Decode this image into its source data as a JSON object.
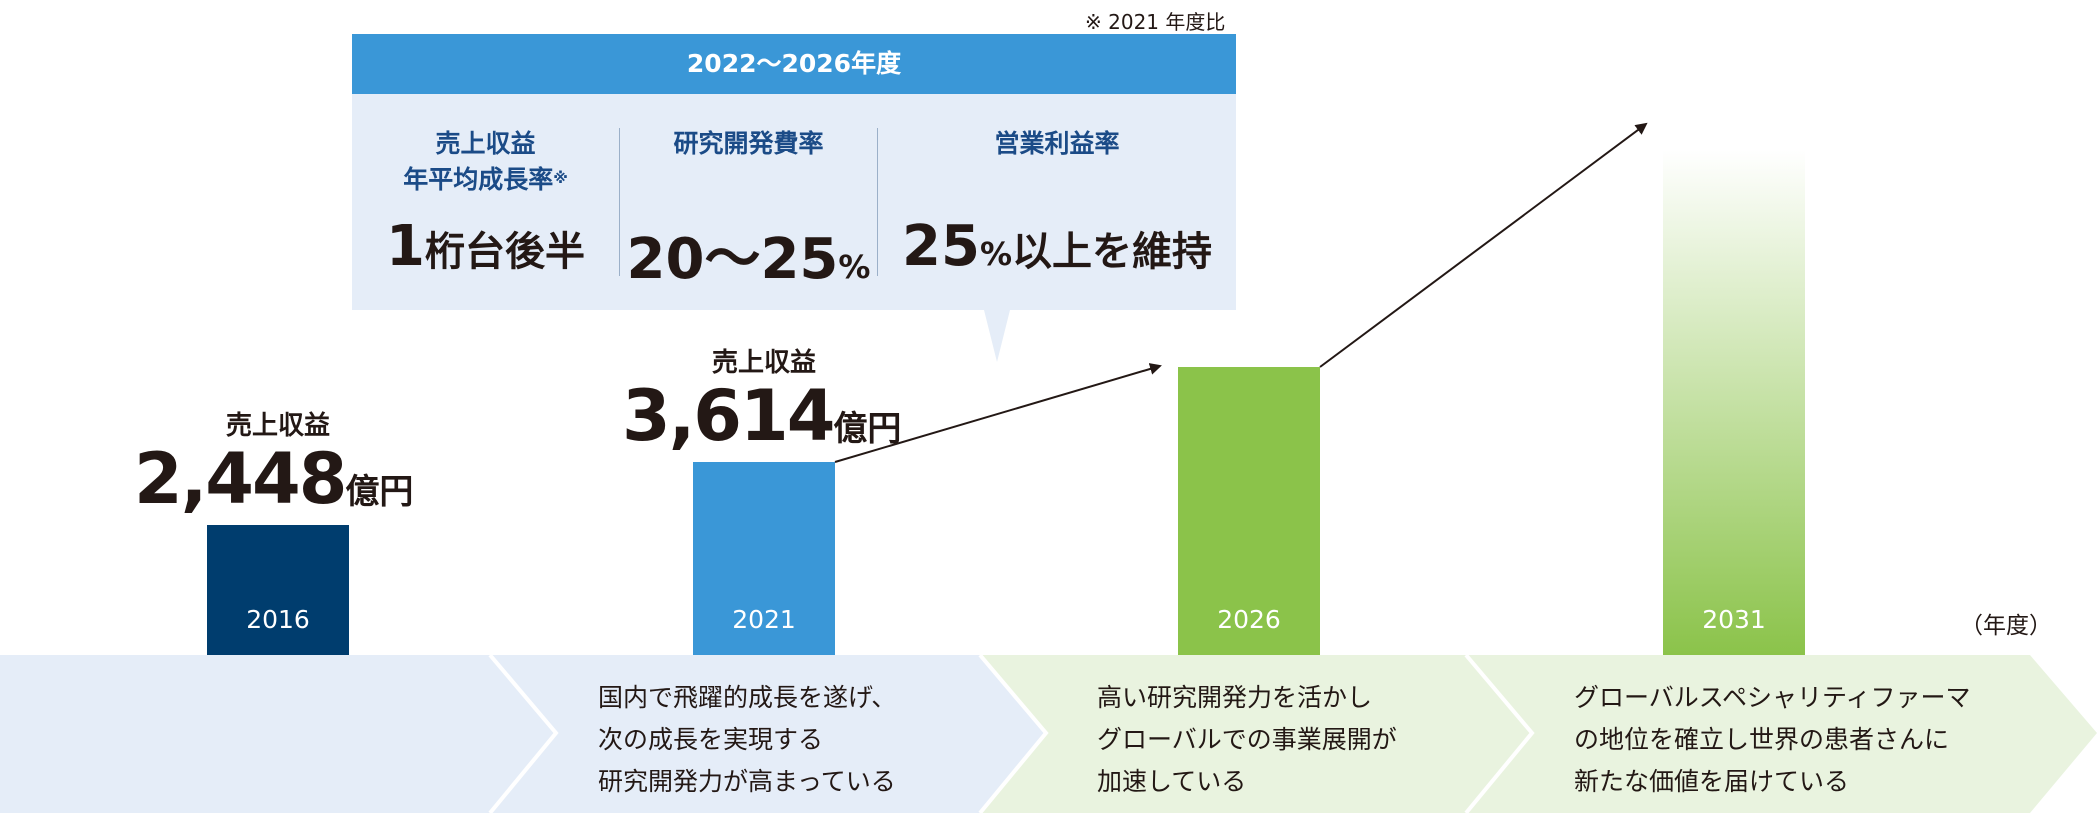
{
  "chart_data": {
    "type": "bar",
    "categories": [
      "2016",
      "2021",
      "2026",
      "2031"
    ],
    "values": [
      2448,
      3614,
      null,
      null
    ],
    "unit": "億円",
    "xunit": "（年度）",
    "colors": [
      "#003d6e",
      "#3a97d7",
      "#8bc34a",
      "#8bc34a"
    ],
    "annotations": {
      "sales_label": "売上収益",
      "bar_2016": "2,448",
      "bar_2021": "3,614",
      "unit": "億円"
    }
  },
  "target": {
    "note": "※ 2021 年度比",
    "period": "2022～2026年度",
    "metrics": [
      {
        "label_line1": "売上収益",
        "label_line2": "年平均成長率",
        "label_mark": "※",
        "value_main": "1",
        "value_rest": "桁台後半"
      },
      {
        "label_line1": "研究開発費率",
        "value_main": "20～25",
        "value_unit": "%"
      },
      {
        "label_line1": "営業利益率",
        "value_main": "25",
        "value_unit": "%",
        "value_rest": "以上を維持"
      }
    ]
  },
  "phases": [
    {
      "lines": []
    },
    {
      "lines": [
        "国内で飛躍的成長を遂げ、",
        "次の成長を実現する",
        "研究開発力が高まっている"
      ]
    },
    {
      "lines": [
        "高い研究開発力を活かし",
        "グローバルでの事業展開が",
        "加速している"
      ]
    },
    {
      "lines": [
        "グローバルスペシャリティファーマ",
        "の地位を確立し世界の患者さんに",
        "新たな価値を届けている"
      ]
    }
  ],
  "colors": {
    "navy": "#003d6e",
    "blue": "#3a97d7",
    "green": "#8bc34a",
    "phase_blue": "#e5edf8",
    "phase_green": "#e9f3df"
  }
}
